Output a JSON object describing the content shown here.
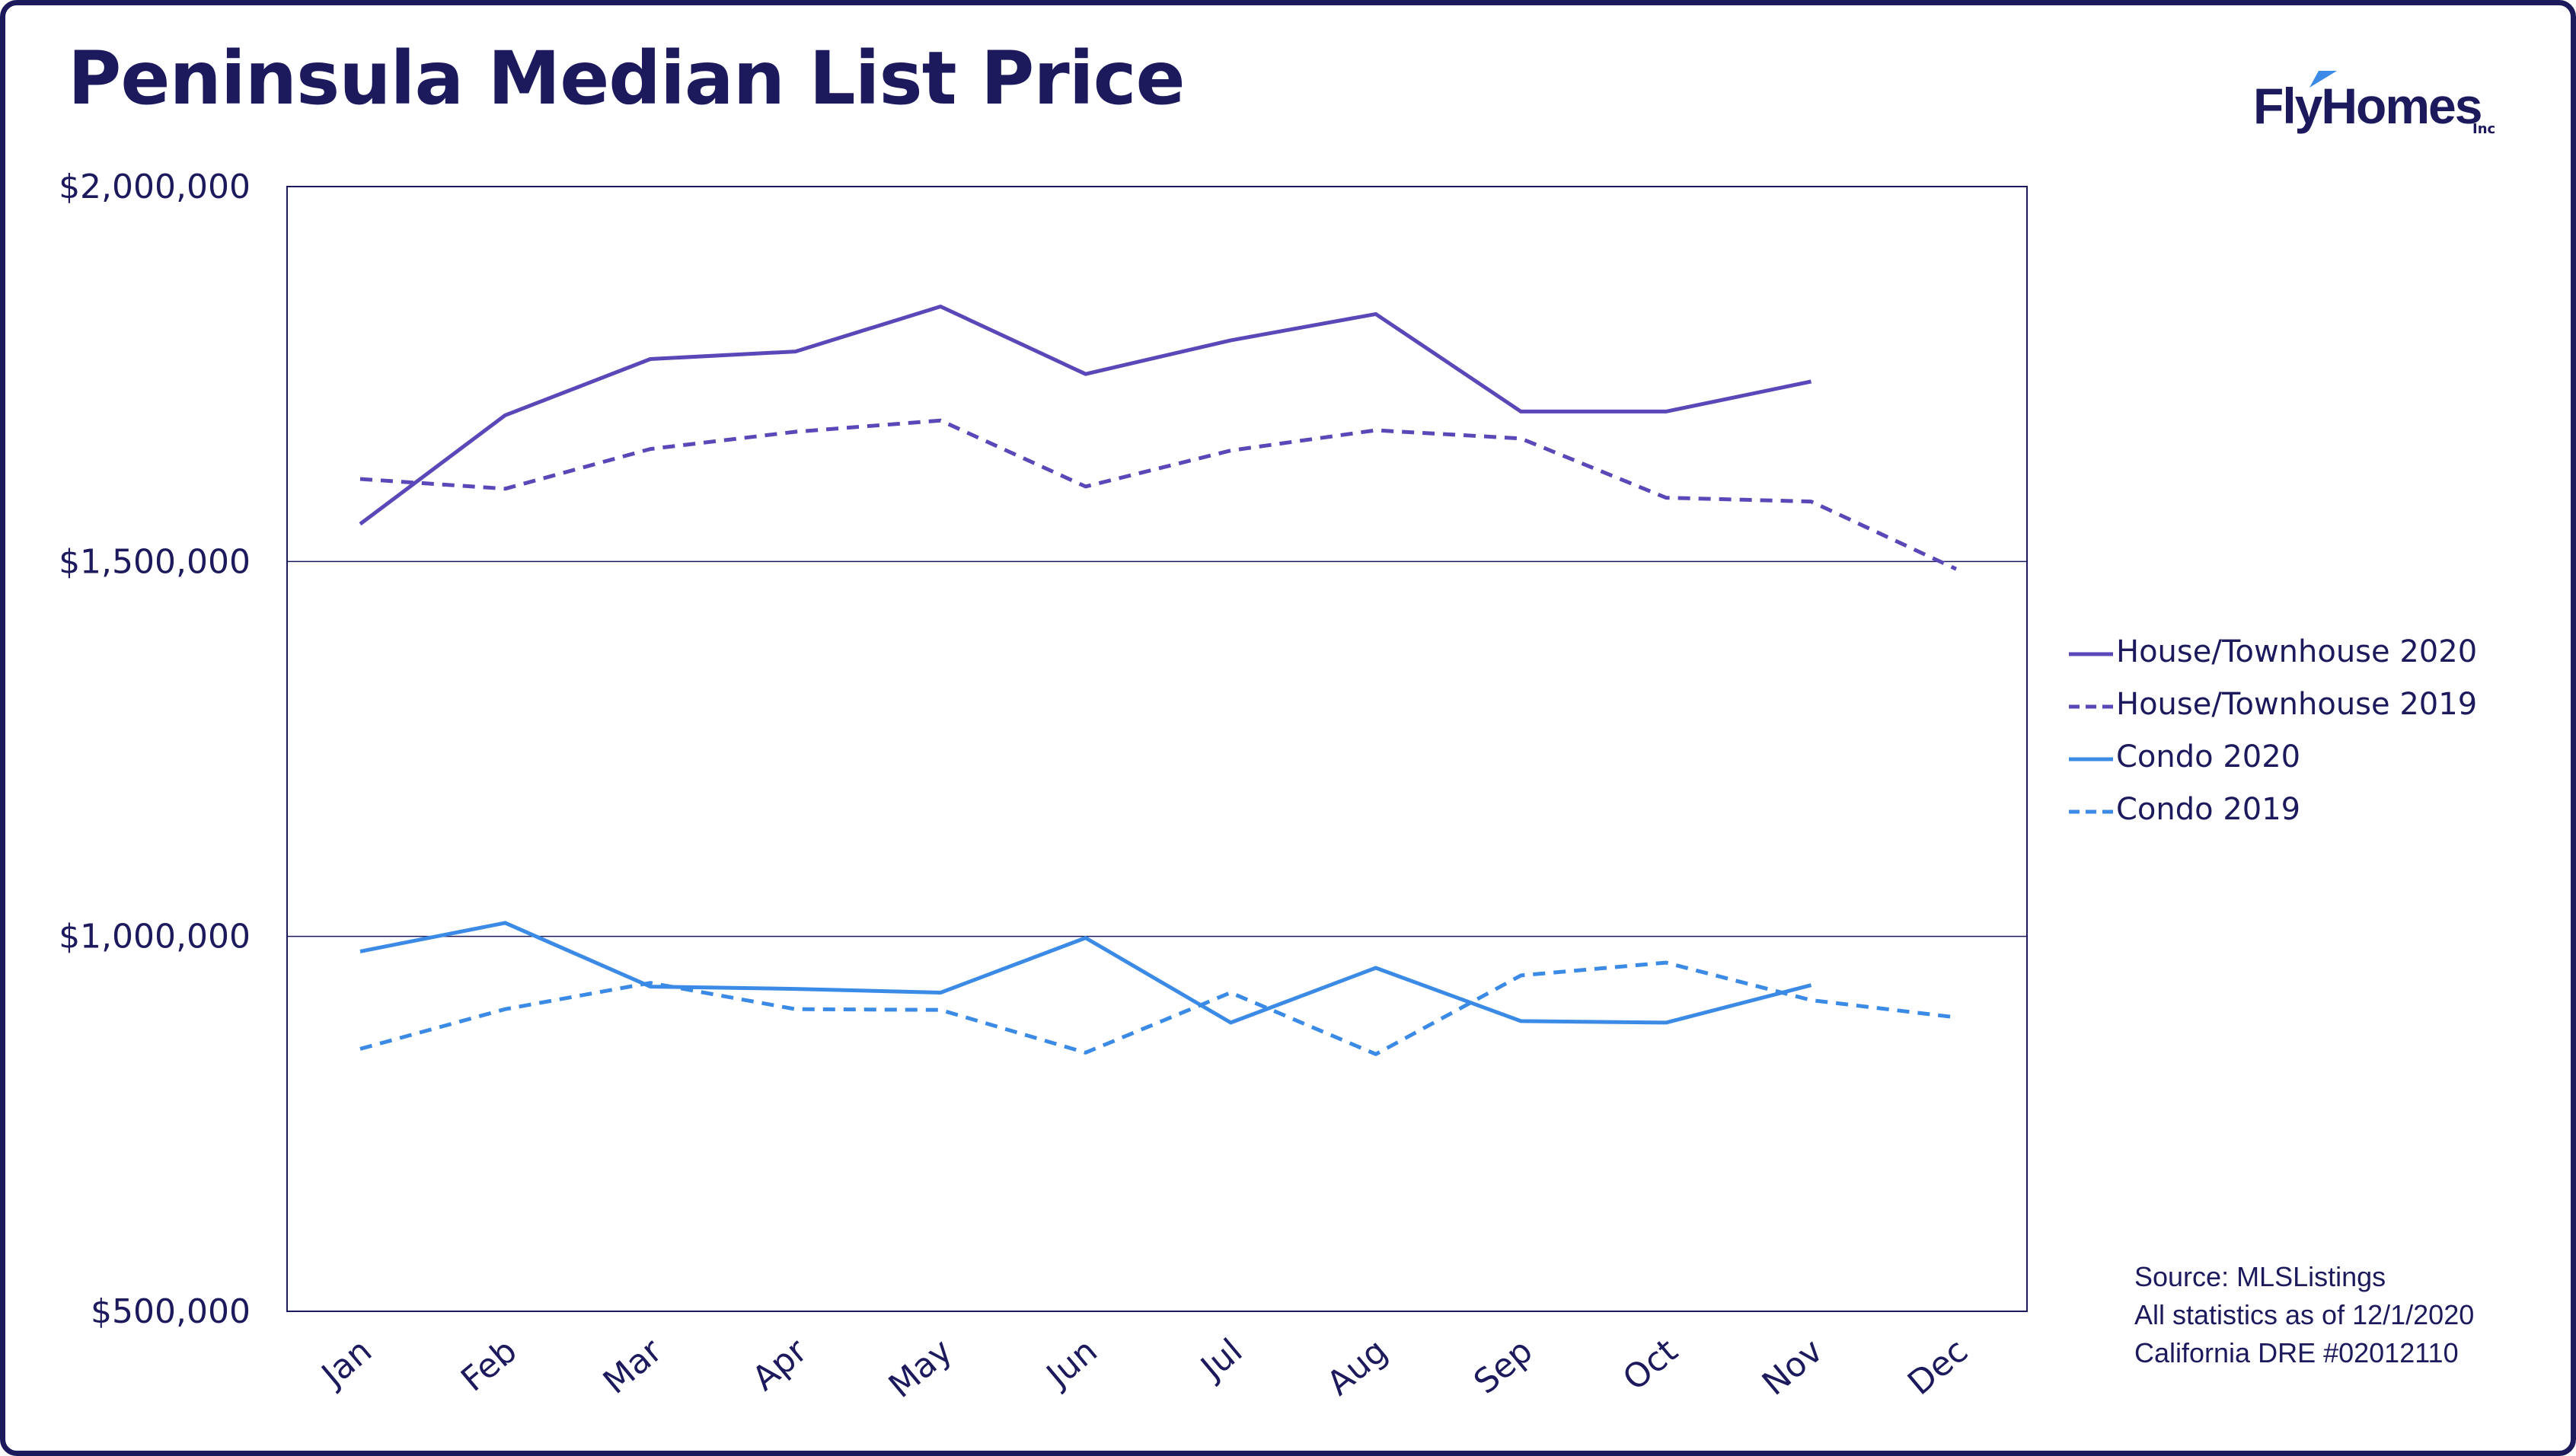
{
  "title": "Peninsula Median List Price",
  "logo": {
    "text": "FlyHomes",
    "suffix": "Inc",
    "icon": "bird-wing-icon"
  },
  "colors": {
    "frame": "#1c1a5c",
    "house": "#5b47b8",
    "condo": "#3b8be6",
    "text": "#1c1a5c"
  },
  "source_lines": [
    "Source: MLSListings",
    "All statistics as of 12/1/2020",
    "California DRE #02012110"
  ],
  "chart_data": {
    "type": "line",
    "title": "Peninsula Median List Price",
    "categories": [
      "Jan",
      "Feb",
      "Mar",
      "Apr",
      "May",
      "Jun",
      "Jul",
      "Aug",
      "Sep",
      "Oct",
      "Nov",
      "Dec"
    ],
    "ylim": [
      500000,
      2000000
    ],
    "yticks": [
      500000,
      1000000,
      1500000,
      2000000
    ],
    "ytick_labels": [
      "$500,000",
      "$1,000,000",
      "$1,500,000",
      "$2,000,000"
    ],
    "grid": "horizontal",
    "legend_position": "right",
    "series": [
      {
        "name": "House/Townhouse 2020",
        "style": "solid",
        "color": "#5b47b8",
        "values": [
          1550000,
          1695000,
          1770000,
          1780000,
          1840000,
          1750000,
          1795000,
          1830000,
          1700000,
          1700000,
          1740000,
          null
        ]
      },
      {
        "name": "House/Townhouse 2019",
        "style": "dashed",
        "color": "#5b47b8",
        "values": [
          1610000,
          1597000,
          1650000,
          1673000,
          1688000,
          1600000,
          1648000,
          1675000,
          1664000,
          1585000,
          1580000,
          1490000
        ]
      },
      {
        "name": "Condo 2020",
        "style": "solid",
        "color": "#3b8be6",
        "values": [
          980000,
          1018000,
          933000,
          930000,
          925000,
          998000,
          885000,
          958000,
          887000,
          885000,
          935000,
          null
        ]
      },
      {
        "name": "Condo 2019",
        "style": "dashed",
        "color": "#3b8be6",
        "values": [
          850000,
          903000,
          938000,
          903000,
          902000,
          845000,
          925000,
          843000,
          948000,
          965000,
          915000,
          892000
        ]
      }
    ]
  }
}
